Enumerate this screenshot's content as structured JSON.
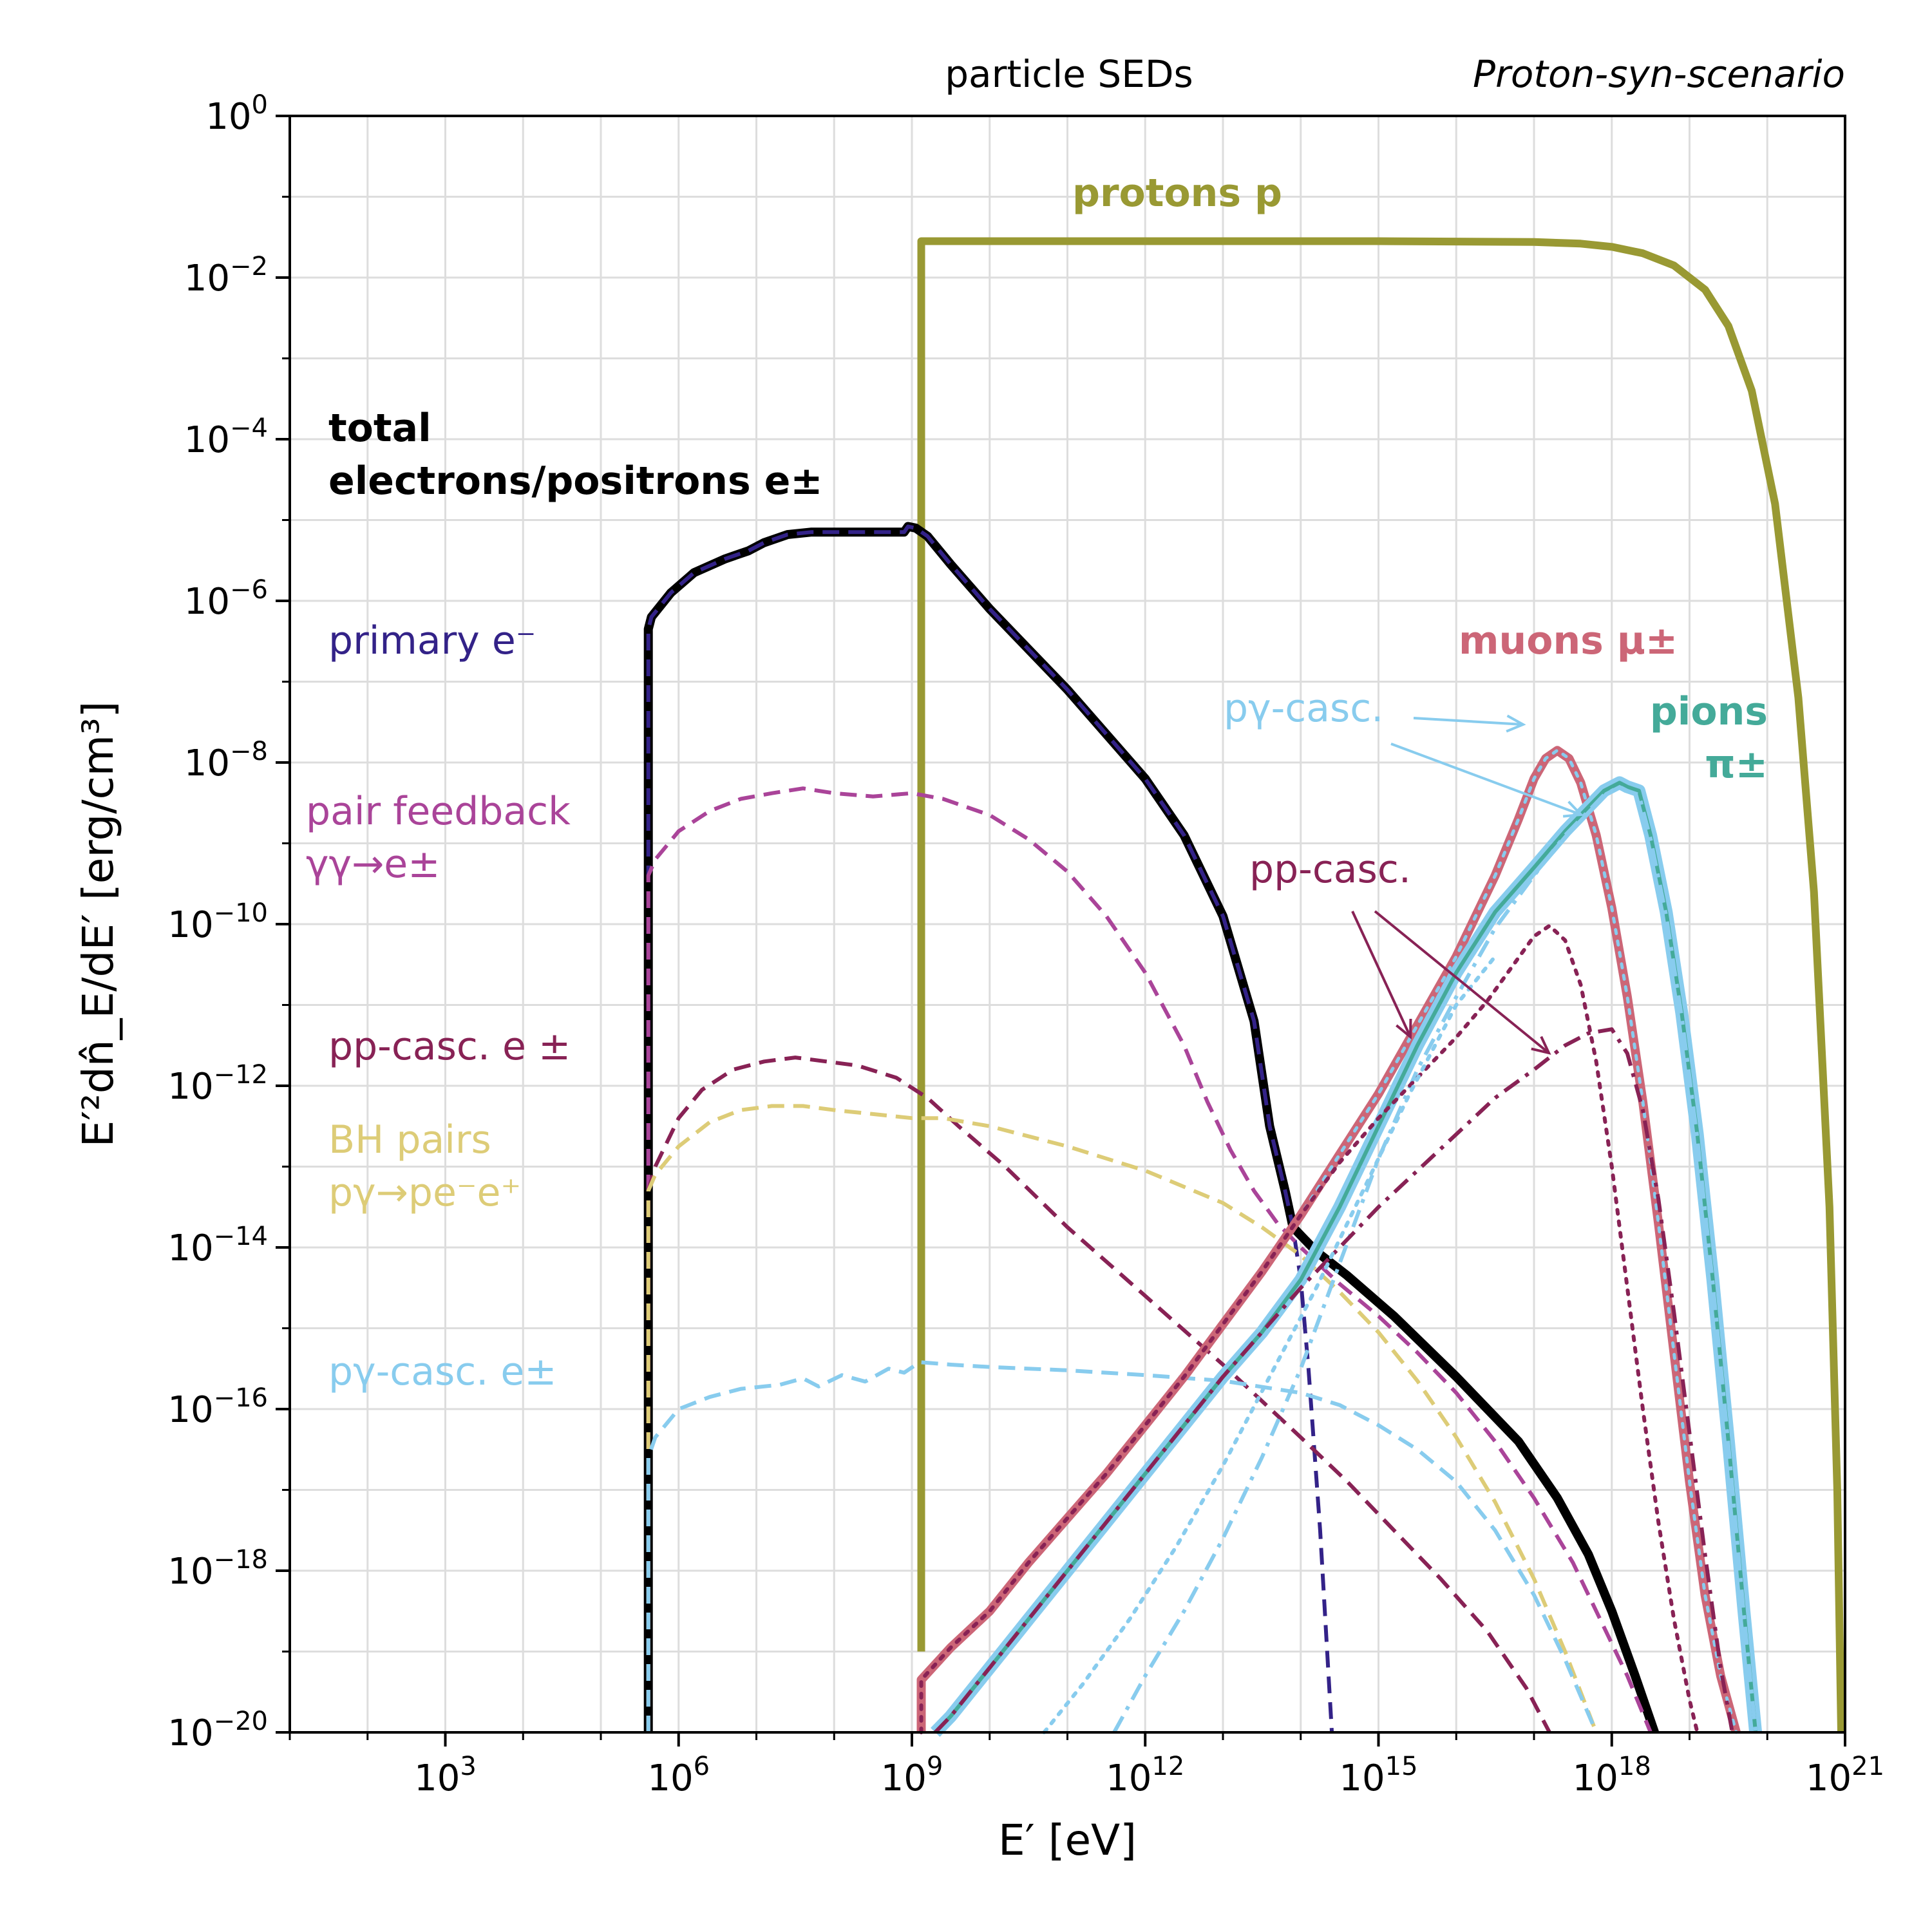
{
  "chart_data": {
    "type": "line",
    "title_left": "particle SEDs",
    "title_right": "Proton-syn-scenario",
    "xlabel": "E′ [eV]",
    "ylabel": "E′²dn̂_E/dE′ [erg/cm³]",
    "xscale": "log",
    "yscale": "log",
    "xlim": [
      10,
      1e+21
    ],
    "ylim": [
      1e-20,
      1
    ],
    "grid": true,
    "x_ticks": [
      {
        "exp": 3,
        "label": "10",
        "sup": "3"
      },
      {
        "exp": 6,
        "label": "10",
        "sup": "6"
      },
      {
        "exp": 9,
        "label": "10",
        "sup": "9"
      },
      {
        "exp": 12,
        "label": "10",
        "sup": "12"
      },
      {
        "exp": 15,
        "label": "10",
        "sup": "15"
      },
      {
        "exp": 18,
        "label": "10",
        "sup": "18"
      },
      {
        "exp": 21,
        "label": "10",
        "sup": "21"
      }
    ],
    "y_ticks": [
      {
        "exp": 0,
        "label": "10",
        "sup": "0"
      },
      {
        "exp": -2,
        "label": "10",
        "sup": "−2"
      },
      {
        "exp": -4,
        "label": "10",
        "sup": "−4"
      },
      {
        "exp": -6,
        "label": "10",
        "sup": "−6"
      },
      {
        "exp": -8,
        "label": "10",
        "sup": "−8"
      },
      {
        "exp": -10,
        "label": "10",
        "sup": "−10"
      },
      {
        "exp": -12,
        "label": "10",
        "sup": "−12"
      },
      {
        "exp": -14,
        "label": "10",
        "sup": "−14"
      },
      {
        "exp": -16,
        "label": "10",
        "sup": "−16"
      },
      {
        "exp": -18,
        "label": "10",
        "sup": "−18"
      },
      {
        "exp": -20,
        "label": "10",
        "sup": "−20"
      }
    ],
    "colors": {
      "protons": "#999933",
      "total": "#000000",
      "primary": "#332288",
      "pair_feedback": "#AA4499",
      "pp_casc": "#882255",
      "bh_pairs": "#DDCC77",
      "pgamma_casc": "#88CCEE",
      "muons": "#CC6677",
      "pions": "#44AA99"
    },
    "annotations": [
      {
        "key": "protons",
        "text": "protons p"
      },
      {
        "key": "total",
        "lines": [
          "total",
          "electrons/positrons e±"
        ]
      },
      {
        "key": "primary",
        "text": "primary e⁻"
      },
      {
        "key": "pair_feedback",
        "lines": [
          "pair feedback",
          "γγ→e±"
        ]
      },
      {
        "key": "pp_casc",
        "text": "pp-casc. e ±"
      },
      {
        "key": "bh_pairs",
        "lines": [
          "BH pairs",
          "pγ→pe⁻e⁺"
        ]
      },
      {
        "key": "pgamma_casc",
        "text": "pγ-casc. e±"
      },
      {
        "key": "muons",
        "text": "muons μ±"
      },
      {
        "key": "pions",
        "lines": [
          "pions",
          "π±"
        ]
      },
      {
        "key": "pgamma_pointer",
        "text": "pγ-casc."
      },
      {
        "key": "pp_pointer",
        "text": "pp-casc."
      }
    ],
    "series": [
      {
        "key": "protons",
        "style": "solid",
        "width": 12,
        "x": [
          9.12,
          9.12,
          10,
          12,
          15,
          17,
          17.6,
          18.0,
          18.4,
          18.8,
          19.2,
          19.5,
          19.8,
          20.1,
          20.4,
          20.6,
          20.8,
          20.9,
          20.95
        ],
        "y": [
          -19,
          -1.55,
          -1.55,
          -1.55,
          -1.55,
          -1.56,
          -1.58,
          -1.62,
          -1.7,
          -1.85,
          -2.15,
          -2.6,
          -3.4,
          -4.8,
          -7.2,
          -9.6,
          -13.5,
          -17,
          -20
        ]
      },
      {
        "key": "total",
        "style": "solid",
        "width": 14,
        "x": [
          5.61,
          5.61,
          5.65,
          5.9,
          6.2,
          6.6,
          6.9,
          7.1,
          7.4,
          7.7,
          8.0,
          8.3,
          8.9,
          8.95,
          9.05,
          9.2,
          9.5,
          10,
          11,
          12,
          12.5,
          13,
          13.4,
          13.6,
          13.8,
          13.9,
          14.0,
          14.2,
          14.6,
          15.2,
          16,
          16.8,
          17.3,
          17.7,
          18.0,
          18.3,
          18.55
        ],
        "y": [
          -20,
          -6.35,
          -6.2,
          -5.9,
          -5.65,
          -5.48,
          -5.38,
          -5.28,
          -5.18,
          -5.15,
          -5.15,
          -5.15,
          -5.15,
          -5.08,
          -5.1,
          -5.2,
          -5.55,
          -6.1,
          -7.1,
          -8.2,
          -8.9,
          -9.9,
          -11.2,
          -12.5,
          -13.3,
          -13.75,
          -13.85,
          -14.05,
          -14.35,
          -14.85,
          -15.6,
          -16.4,
          -17.1,
          -17.8,
          -18.5,
          -19.3,
          -20
        ]
      },
      {
        "key": "primary",
        "style": "dashed",
        "width": 6,
        "x": [
          5.61,
          5.61,
          5.65,
          5.9,
          6.2,
          6.6,
          6.9,
          7.1,
          7.4,
          7.7,
          8.0,
          8.3,
          8.9,
          8.95,
          9.05,
          9.2,
          9.5,
          10,
          11,
          12,
          12.5,
          13,
          13.4,
          13.6,
          13.8,
          13.9,
          14.0,
          14.1,
          14.25,
          14.4
        ],
        "y": [
          -20,
          -6.35,
          -6.2,
          -5.9,
          -5.65,
          -5.48,
          -5.38,
          -5.28,
          -5.18,
          -5.15,
          -5.15,
          -5.15,
          -5.15,
          -5.08,
          -5.1,
          -5.2,
          -5.55,
          -6.1,
          -7.1,
          -8.2,
          -8.9,
          -9.9,
          -11.2,
          -12.5,
          -13.3,
          -13.75,
          -14.4,
          -15.5,
          -17.5,
          -20
        ]
      },
      {
        "key": "pair_feedback",
        "style": "dashed",
        "width": 6,
        "x": [
          5.61,
          5.61,
          5.7,
          6.0,
          6.4,
          6.8,
          7.2,
          7.6,
          8.0,
          8.5,
          9.0,
          9.4,
          10,
          10.5,
          11,
          11.5,
          12,
          12.5,
          12.8,
          13.1,
          13.4,
          13.7,
          14.0,
          14.5,
          15,
          15.5,
          16,
          16.5,
          17,
          17.5,
          17.9,
          18.2,
          18.5
        ],
        "y": [
          -20,
          -9.4,
          -9.2,
          -8.85,
          -8.6,
          -8.45,
          -8.38,
          -8.32,
          -8.38,
          -8.42,
          -8.38,
          -8.45,
          -8.65,
          -8.95,
          -9.35,
          -9.9,
          -10.6,
          -11.5,
          -12.2,
          -12.8,
          -13.3,
          -13.7,
          -14.0,
          -14.45,
          -14.85,
          -15.3,
          -15.8,
          -16.4,
          -17.1,
          -17.9,
          -18.7,
          -19.3,
          -20
        ]
      },
      {
        "key": "pp_e",
        "color": "pp_casc",
        "style": "dashed",
        "width": 6,
        "x": [
          5.61,
          5.61,
          5.7,
          6.0,
          6.3,
          6.7,
          7.1,
          7.5,
          7.9,
          8.3,
          8.8,
          9.2,
          9.6,
          10.2,
          11,
          12,
          13,
          14,
          14.6,
          15.2,
          15.8,
          16.4,
          16.9,
          17.2
        ],
        "y": [
          -20,
          -13.3,
          -13.0,
          -12.4,
          -12.05,
          -11.8,
          -11.7,
          -11.65,
          -11.7,
          -11.75,
          -11.9,
          -12.15,
          -12.5,
          -13.0,
          -13.75,
          -14.6,
          -15.45,
          -16.35,
          -16.9,
          -17.5,
          -18.1,
          -18.75,
          -19.45,
          -20
        ]
      },
      {
        "key": "bh_pairs",
        "style": "dashed",
        "width": 6,
        "x": [
          5.61,
          5.61,
          5.7,
          6.0,
          6.4,
          6.8,
          7.2,
          7.6,
          8.0,
          8.5,
          9.0,
          9.4,
          10,
          11,
          12,
          13,
          13.5,
          14,
          14.5,
          15,
          15.5,
          16,
          16.5,
          17,
          17.4,
          17.8
        ],
        "y": [
          -20,
          -13.3,
          -13.1,
          -12.75,
          -12.45,
          -12.3,
          -12.25,
          -12.25,
          -12.3,
          -12.35,
          -12.4,
          -12.4,
          -12.5,
          -12.75,
          -13.05,
          -13.45,
          -13.75,
          -14.1,
          -14.55,
          -15.05,
          -15.65,
          -16.35,
          -17.15,
          -18.1,
          -19.0,
          -20
        ]
      },
      {
        "key": "pgamma_e",
        "color": "pgamma_casc",
        "style": "dashed",
        "width": 6,
        "x": [
          5.61,
          5.61,
          5.7,
          6.0,
          6.4,
          6.8,
          7.3,
          7.6,
          7.8,
          8.1,
          8.4,
          8.7,
          8.9,
          9.1,
          9.5,
          10,
          11,
          12,
          13,
          14,
          14.5,
          15,
          15.5,
          16,
          16.5,
          17,
          17.4,
          17.8
        ],
        "y": [
          -20,
          -16.6,
          -16.35,
          -16.0,
          -15.85,
          -15.75,
          -15.7,
          -15.62,
          -15.72,
          -15.58,
          -15.66,
          -15.5,
          -15.55,
          -15.42,
          -15.45,
          -15.48,
          -15.52,
          -15.58,
          -15.65,
          -15.8,
          -15.95,
          -16.2,
          -16.5,
          -16.9,
          -17.5,
          -18.3,
          -19.1,
          -20
        ]
      },
      {
        "key": "muons",
        "style": "solid",
        "width": 14,
        "x": [
          9.12,
          9.12,
          9.5,
          10,
          10.5,
          11,
          11.5,
          12,
          12.5,
          13,
          13.5,
          14,
          14.5,
          15,
          15.5,
          16,
          16.5,
          16.8,
          17.0,
          17.15,
          17.3,
          17.45,
          17.6,
          17.8,
          18.0,
          18.2,
          18.4,
          18.6,
          18.8,
          19.0,
          19.2,
          19.4,
          19.6
        ],
        "y": [
          -20,
          -19.35,
          -18.95,
          -18.5,
          -17.9,
          -17.35,
          -16.8,
          -16.2,
          -15.6,
          -14.95,
          -14.3,
          -13.6,
          -12.85,
          -12.1,
          -11.25,
          -10.4,
          -9.4,
          -8.7,
          -8.2,
          -7.95,
          -7.85,
          -7.95,
          -8.25,
          -8.9,
          -9.8,
          -10.9,
          -12.2,
          -13.7,
          -15.3,
          -16.9,
          -18.3,
          -19.3,
          -20
        ]
      },
      {
        "key": "muons_pg",
        "color": "pgamma_casc",
        "style": "dotted",
        "width": 5,
        "x": [
          9.12,
          9.12,
          9.5,
          10,
          10.5,
          11,
          11.5,
          12,
          12.5,
          13,
          13.5,
          14,
          14.5,
          15,
          15.5,
          16,
          16.5,
          16.8,
          17.0,
          17.15,
          17.3,
          17.45,
          17.6,
          17.8,
          18.0,
          18.2,
          18.4,
          18.6,
          18.8,
          19.0,
          19.2,
          19.4,
          19.6
        ],
        "y": [
          -20,
          -19.35,
          -18.95,
          -18.5,
          -17.9,
          -17.35,
          -16.8,
          -16.2,
          -15.6,
          -14.95,
          -14.3,
          -13.6,
          -12.85,
          -12.1,
          -11.25,
          -10.4,
          -9.4,
          -8.7,
          -8.2,
          -7.95,
          -7.85,
          -7.95,
          -8.25,
          -8.9,
          -9.8,
          -10.9,
          -12.2,
          -13.7,
          -15.3,
          -16.9,
          -18.3,
          -19.3,
          -20
        ]
      },
      {
        "key": "pions_cyan",
        "color": "pgamma_casc",
        "style": "solid",
        "width": 20,
        "x": [
          9.3,
          9.5,
          10,
          10.5,
          11,
          11.5,
          12,
          12.5,
          13,
          13.5,
          14,
          14.5,
          15,
          15.5,
          16,
          16.5,
          17,
          17.4,
          17.7,
          17.9,
          18.1,
          18.2,
          18.35,
          18.5,
          18.7,
          18.9,
          19.1,
          19.3,
          19.5,
          19.7,
          19.85
        ],
        "y": [
          -20,
          -19.8,
          -19.2,
          -18.6,
          -18.0,
          -17.4,
          -16.8,
          -16.2,
          -15.6,
          -15.05,
          -14.4,
          -13.5,
          -12.5,
          -11.5,
          -10.6,
          -9.85,
          -9.3,
          -8.85,
          -8.55,
          -8.35,
          -8.25,
          -8.3,
          -8.35,
          -8.9,
          -9.85,
          -11.1,
          -12.6,
          -14.4,
          -16.4,
          -18.5,
          -20
        ]
      },
      {
        "key": "pions",
        "style": "solid",
        "width": 6,
        "x": [
          9.3,
          9.5,
          10,
          10.5,
          11,
          11.5,
          12,
          12.5,
          13,
          13.5,
          14,
          14.5,
          15,
          15.5,
          16,
          16.5,
          17,
          17.4,
          17.7,
          17.9,
          18.1,
          18.2,
          18.35,
          18.5,
          18.7,
          18.9,
          19.1,
          19.3,
          19.5,
          19.7,
          19.85
        ],
        "y": [
          -20,
          -19.8,
          -19.2,
          -18.6,
          -18.0,
          -17.4,
          -16.8,
          -16.2,
          -15.6,
          -15.05,
          -14.4,
          -13.5,
          -12.5,
          -11.5,
          -10.6,
          -9.85,
          -9.3,
          -8.85,
          -8.55,
          -8.35,
          -8.25,
          -8.3,
          -8.35,
          -8.9,
          -9.85,
          -11.1,
          -12.6,
          -14.4,
          -16.4,
          -18.5,
          -20
        ]
      },
      {
        "key": "pions_pg",
        "color": "pgamma_casc",
        "style": "dashdot",
        "width": 6,
        "x": [
          11.6,
          12.0,
          12.5,
          13,
          13.5,
          14,
          14.5,
          15,
          15.5,
          16,
          16.5,
          17,
          17.4,
          17.7,
          17.9,
          18.1,
          18.2,
          18.35,
          18.5,
          18.7,
          18.9,
          19.1,
          19.3,
          19.5,
          19.7,
          19.85
        ],
        "y": [
          -20,
          -19.3,
          -18.5,
          -17.6,
          -16.6,
          -15.5,
          -14.2,
          -12.9,
          -11.8,
          -10.9,
          -10.05,
          -9.4,
          -8.9,
          -8.6,
          -8.4,
          -8.3,
          -8.35,
          -8.4,
          -8.95,
          -9.9,
          -11.15,
          -12.65,
          -14.45,
          -16.45,
          -18.55,
          -20
        ]
      },
      {
        "key": "pions_pp",
        "color": "pp_casc",
        "style": "dashdot",
        "width": 6,
        "x": [
          9.3,
          9.5,
          10,
          10.5,
          11,
          11.5,
          12,
          12.5,
          13,
          13.5,
          14,
          14.5,
          15,
          15.5,
          16,
          16.5,
          17,
          17.4,
          17.7,
          18.0,
          18.2,
          18.4,
          18.6,
          18.8,
          19.0,
          19.2,
          19.4,
          19.55
        ],
        "y": [
          -20,
          -19.8,
          -19.2,
          -18.6,
          -18.0,
          -17.4,
          -16.8,
          -16.2,
          -15.6,
          -15.05,
          -14.5,
          -14.0,
          -13.5,
          -13.05,
          -12.6,
          -12.15,
          -11.8,
          -11.5,
          -11.35,
          -11.3,
          -11.6,
          -12.3,
          -13.4,
          -14.8,
          -16.3,
          -17.8,
          -19.2,
          -20
        ]
      },
      {
        "key": "muons_pp",
        "color": "pp_casc",
        "style": "dotted",
        "width": 6,
        "x": [
          9.12,
          9.12,
          9.5,
          10,
          10.5,
          11,
          11.5,
          12,
          12.5,
          13,
          13.5,
          14,
          14.5,
          15,
          15.5,
          16,
          16.4,
          16.7,
          17.0,
          17.2,
          17.4,
          17.6,
          17.8,
          18.0,
          18.2,
          18.4,
          18.6,
          18.8,
          19.0,
          19.1
        ],
        "y": [
          -20,
          -19.35,
          -18.95,
          -18.5,
          -17.9,
          -17.35,
          -16.8,
          -16.2,
          -15.6,
          -14.95,
          -14.3,
          -13.6,
          -12.95,
          -12.4,
          -11.9,
          -11.4,
          -10.95,
          -10.55,
          -10.15,
          -10.02,
          -10.2,
          -10.75,
          -11.7,
          -13.0,
          -14.5,
          -16.0,
          -17.4,
          -18.6,
          -19.6,
          -20
        ]
      },
      {
        "key": "muons_pg_low",
        "color": "pgamma_casc",
        "style": "dotted",
        "width": 6,
        "x": [
          10.7,
          11.2,
          11.8,
          12.4,
          13,
          13.6,
          14.2,
          14.8,
          15.4,
          16,
          16.5
        ],
        "y": [
          -20,
          -19.4,
          -18.6,
          -17.7,
          -16.7,
          -15.6,
          -14.5,
          -13.3,
          -12.1,
          -11.0,
          -10.4
        ]
      }
    ]
  }
}
